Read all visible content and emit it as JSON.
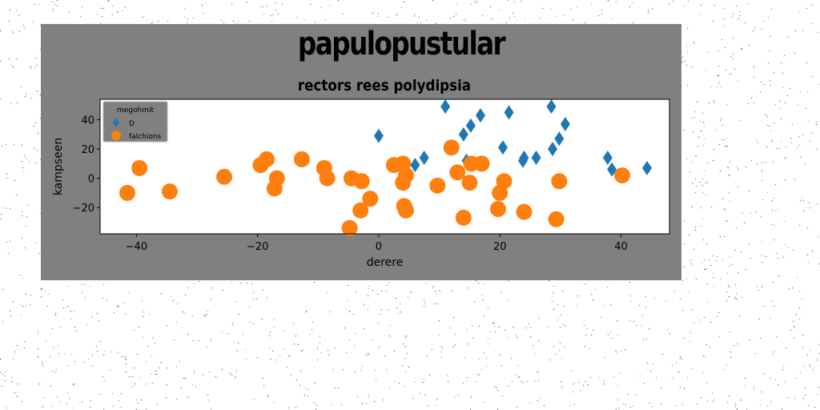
{
  "chart_data": {
    "type": "scatter",
    "suptitle": "papulopustular",
    "title": "rectors rees polydipsia",
    "xlabel": "derere",
    "ylabel": "kampseen",
    "xlim": [
      -46,
      48
    ],
    "ylim": [
      -38,
      54
    ],
    "xticks": [
      -40,
      -20,
      0,
      20,
      40
    ],
    "yticks": [
      -20,
      0,
      20,
      40
    ],
    "grid": false,
    "legend": {
      "title": "megohmit",
      "position": "top-left"
    },
    "colors": {
      "figure_bg": "#808080",
      "axes_bg": "#ffffff",
      "legend_bg": "#808080"
    },
    "series": [
      {
        "name": "D",
        "marker": "diamond",
        "color": "#1f77b4",
        "x": [
          0,
          6,
          7.5,
          11,
          14,
          14.5,
          15.2,
          16.8,
          20.5,
          21.5,
          23.8,
          24,
          26,
          28.5,
          28.7,
          29.8,
          30.8,
          37.8,
          38.5,
          44.3
        ],
        "y": [
          29,
          9,
          14,
          49,
          30,
          12,
          36,
          43,
          21,
          45,
          12,
          14,
          14,
          49,
          20,
          27,
          37,
          14,
          6,
          7
        ]
      },
      {
        "name": "falchions",
        "marker": "circle",
        "color": "#ff7f0e",
        "x": [
          -41.5,
          -39.5,
          -34.5,
          -25.5,
          -19.5,
          -18.5,
          -17.2,
          -16.8,
          -12.7,
          -9,
          -8.5,
          -4.8,
          -4.5,
          -3,
          -2.8,
          -1.4,
          2.5,
          4,
          4,
          4.2,
          4.5,
          4.5,
          9.7,
          12,
          13,
          14,
          15,
          15.3,
          17,
          19.7,
          20,
          20.7,
          24,
          29.3,
          29.8,
          40.2
        ],
        "y": [
          -10,
          7,
          -9,
          1,
          9,
          13,
          -7,
          0,
          13,
          7,
          0,
          -34,
          0,
          -22,
          -2,
          -14,
          9,
          10,
          -3,
          -19,
          -22,
          2,
          -5,
          21,
          4,
          -27,
          -3,
          10,
          10,
          -21,
          -10,
          -2,
          -23,
          -28,
          -2,
          2
        ]
      }
    ]
  }
}
